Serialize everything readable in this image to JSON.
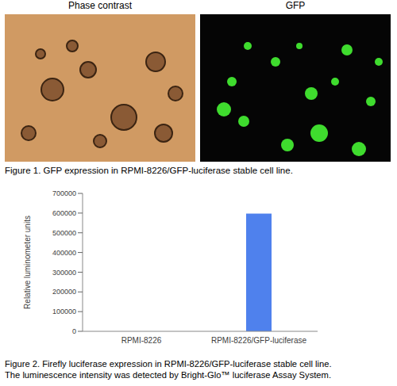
{
  "figure1": {
    "panels": [
      "Phase contrast",
      "GFP"
    ],
    "caption": "Figure 1. GFP expression in RPMI-8226/GFP-luciferase stable cell line."
  },
  "chart_data": {
    "type": "bar",
    "y_label": "Relative luminometer units",
    "categories": [
      "RPMI-8226",
      "RPMI-8226/GFP-luciferase"
    ],
    "values": [
      0,
      597000
    ],
    "color": "#4f81ed",
    "ylim": [
      0,
      700000
    ],
    "yticks": [
      0,
      100000,
      200000,
      300000,
      400000,
      500000,
      600000,
      700000
    ],
    "grid": false
  },
  "figure2": {
    "caption": [
      "Figure 2. Firefly luciferase expression in RPMI-8226/GFP-luciferase stable cell line.",
      "The luminescence intensity was detected by Bright-Glo™ luciferase Assay System."
    ]
  }
}
